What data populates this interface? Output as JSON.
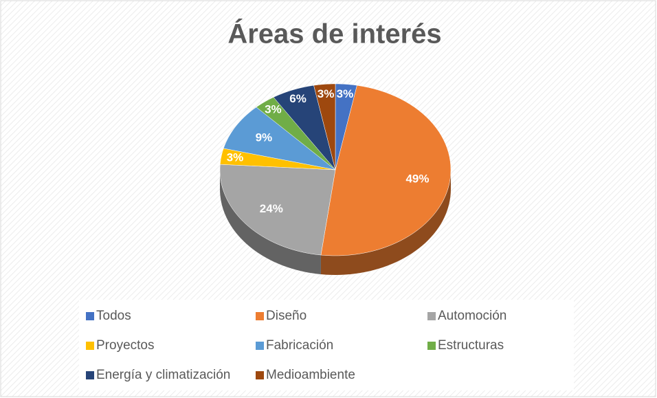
{
  "chart_data": {
    "type": "pie",
    "title": "Áreas de interés",
    "categories": [
      "Todos",
      "Diseño",
      "Automoción",
      "Proyectos",
      "Fabricación",
      "Estructuras",
      "Energía y climatización",
      "Medioambiente"
    ],
    "values": [
      3,
      49,
      24,
      3,
      9,
      3,
      6,
      3
    ],
    "value_labels": [
      "3%",
      "49%",
      "24%",
      "3%",
      "9%",
      "3%",
      "6%",
      "3%"
    ],
    "colors": [
      "#4472c4",
      "#ed7d31",
      "#a5a5a5",
      "#ffc000",
      "#5b9bd5",
      "#70ad47",
      "#264478",
      "#9e480e"
    ],
    "legend": "bottom"
  }
}
